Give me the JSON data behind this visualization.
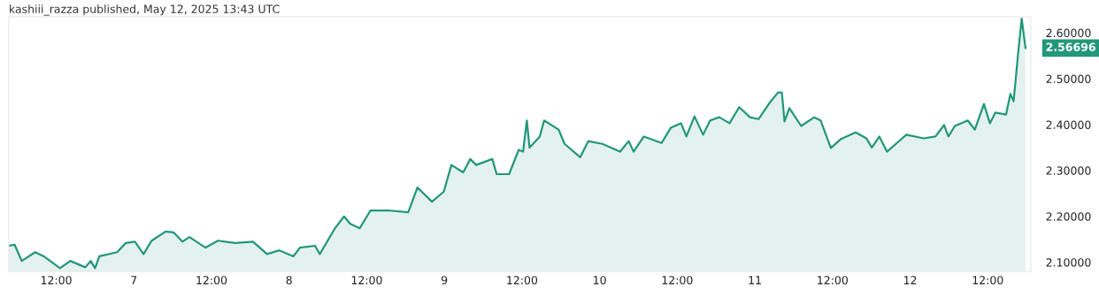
{
  "chart_data": {
    "type": "area",
    "title": "kashiii_razza published, May 12, 2025 13:43 UTC",
    "x": [
      "2025-05-06T04:40",
      "2025-05-06T05:35",
      "2025-05-06T06:40",
      "2025-05-06T08:45",
      "2025-05-06T10:05",
      "2025-05-06T12:35",
      "2025-05-06T14:10",
      "2025-05-06T16:30",
      "2025-05-06T17:20",
      "2025-05-06T18:00",
      "2025-05-06T18:40",
      "2025-05-06T21:25",
      "2025-05-06T22:45",
      "2025-05-07T00:10",
      "2025-05-07T01:30",
      "2025-05-07T02:45",
      "2025-05-07T04:55",
      "2025-05-07T06:10",
      "2025-05-07T07:30",
      "2025-05-07T08:35",
      "2025-05-07T11:05",
      "2025-05-07T13:00",
      "2025-05-07T15:40",
      "2025-05-07T18:25",
      "2025-05-07T20:35",
      "2025-05-07T22:30",
      "2025-05-08T00:40",
      "2025-05-08T01:40",
      "2025-05-08T04:00",
      "2025-05-08T04:45",
      "2025-05-08T07:05",
      "2025-05-08T08:30",
      "2025-05-08T09:25",
      "2025-05-08T10:55",
      "2025-05-08T12:35",
      "2025-05-08T15:20",
      "2025-05-08T18:25",
      "2025-05-08T19:50",
      "2025-05-08T22:05",
      "2025-05-08T23:55",
      "2025-05-09T01:05",
      "2025-05-09T02:55",
      "2025-05-09T04:00",
      "2025-05-09T04:55",
      "2025-05-09T07:25",
      "2025-05-09T08:05",
      "2025-05-09T10:00",
      "2025-05-09T11:30",
      "2025-05-09T12:10",
      "2025-05-09T12:45",
      "2025-05-09T13:10",
      "2025-05-09T14:45",
      "2025-05-09T15:25",
      "2025-05-09T17:40",
      "2025-05-09T18:35",
      "2025-05-09T21:00",
      "2025-05-09T22:15",
      "2025-05-10T00:25",
      "2025-05-10T03:10",
      "2025-05-10T04:30",
      "2025-05-10T05:15",
      "2025-05-10T06:50",
      "2025-05-10T09:35",
      "2025-05-10T11:00",
      "2025-05-10T12:35",
      "2025-05-10T13:25",
      "2025-05-10T14:40",
      "2025-05-10T16:00",
      "2025-05-10T17:05",
      "2025-05-10T18:30",
      "2025-05-10T20:05",
      "2025-05-10T21:35",
      "2025-05-10T23:15",
      "2025-05-11T00:35",
      "2025-05-11T02:15",
      "2025-05-11T03:35",
      "2025-05-11T04:10",
      "2025-05-11T04:35",
      "2025-05-11T05:20",
      "2025-05-11T07:10",
      "2025-05-11T09:10",
      "2025-05-11T10:10",
      "2025-05-11T11:45",
      "2025-05-11T13:15",
      "2025-05-11T15:35",
      "2025-05-11T17:15",
      "2025-05-11T18:05",
      "2025-05-11T19:15",
      "2025-05-11T20:25",
      "2025-05-11T23:25",
      "2025-05-12T02:05",
      "2025-05-12T03:55",
      "2025-05-12T05:15",
      "2025-05-12T05:55",
      "2025-05-12T06:55",
      "2025-05-12T08:55",
      "2025-05-12T10:00",
      "2025-05-12T11:25",
      "2025-05-12T12:20",
      "2025-05-12T13:10",
      "2025-05-12T14:50",
      "2025-05-12T15:30",
      "2025-05-12T16:00",
      "2025-05-12T16:45",
      "2025-05-12T17:15",
      "2025-05-12T17:50"
    ],
    "series": [
      {
        "color": "#22977a",
        "values": [
          2.136,
          2.138,
          2.103,
          2.122,
          2.113,
          2.087,
          2.103,
          2.089,
          2.103,
          2.087,
          2.113,
          2.122,
          2.142,
          2.145,
          2.118,
          2.147,
          2.167,
          2.165,
          2.145,
          2.155,
          2.132,
          2.147,
          2.142,
          2.145,
          2.118,
          2.126,
          2.113,
          2.132,
          2.136,
          2.118,
          2.174,
          2.2,
          2.184,
          2.174,
          2.213,
          2.213,
          2.209,
          2.263,
          2.232,
          2.254,
          2.312,
          2.296,
          2.325,
          2.312,
          2.325,
          2.292,
          2.292,
          2.345,
          2.341,
          2.409,
          2.35,
          2.374,
          2.409,
          2.389,
          2.358,
          2.329,
          2.364,
          2.358,
          2.341,
          2.364,
          2.341,
          2.374,
          2.36,
          2.393,
          2.403,
          2.374,
          2.418,
          2.378,
          2.409,
          2.416,
          2.403,
          2.438,
          2.416,
          2.412,
          2.447,
          2.47,
          2.47,
          2.407,
          2.436,
          2.397,
          2.416,
          2.409,
          2.349,
          2.368,
          2.383,
          2.37,
          2.35,
          2.374,
          2.341,
          2.378,
          2.37,
          2.374,
          2.399,
          2.374,
          2.397,
          2.409,
          2.389,
          2.445,
          2.403,
          2.426,
          2.422,
          2.467,
          2.451,
          2.563,
          2.631,
          2.567
        ]
      }
    ],
    "annotations": [
      "2.56696"
    ],
    "xlim": [
      "2025-05-06T04:40",
      "2025-05-12T18:40"
    ],
    "xticks": [
      {
        "value": "2025-05-06T12:00",
        "label": "12:00"
      },
      {
        "value": "2025-05-07T00:00",
        "label": "7"
      },
      {
        "value": "2025-05-07T12:00",
        "label": "12:00"
      },
      {
        "value": "2025-05-08T00:00",
        "label": "8"
      },
      {
        "value": "2025-05-08T12:00",
        "label": "12:00"
      },
      {
        "value": "2025-05-09T00:00",
        "label": "9"
      },
      {
        "value": "2025-05-09T12:00",
        "label": "12:00"
      },
      {
        "value": "2025-05-10T00:00",
        "label": "10"
      },
      {
        "value": "2025-05-10T12:00",
        "label": "12:00"
      },
      {
        "value": "2025-05-11T00:00",
        "label": "11"
      },
      {
        "value": "2025-05-11T12:00",
        "label": "12:00"
      },
      {
        "value": "2025-05-12T00:00",
        "label": "12"
      },
      {
        "value": "2025-05-12T12:00",
        "label": "12:00"
      }
    ],
    "ylim": [
      2.08,
      2.635
    ],
    "yticks": [
      {
        "value": 2.1,
        "label": "2.10000"
      },
      {
        "value": 2.2,
        "label": "2.20000"
      },
      {
        "value": 2.3,
        "label": "2.30000"
      },
      {
        "value": 2.4,
        "label": "2.40000"
      },
      {
        "value": 2.5,
        "label": "2.50000"
      },
      {
        "value": 2.6,
        "label": "2.60000"
      }
    ],
    "grid": false
  }
}
